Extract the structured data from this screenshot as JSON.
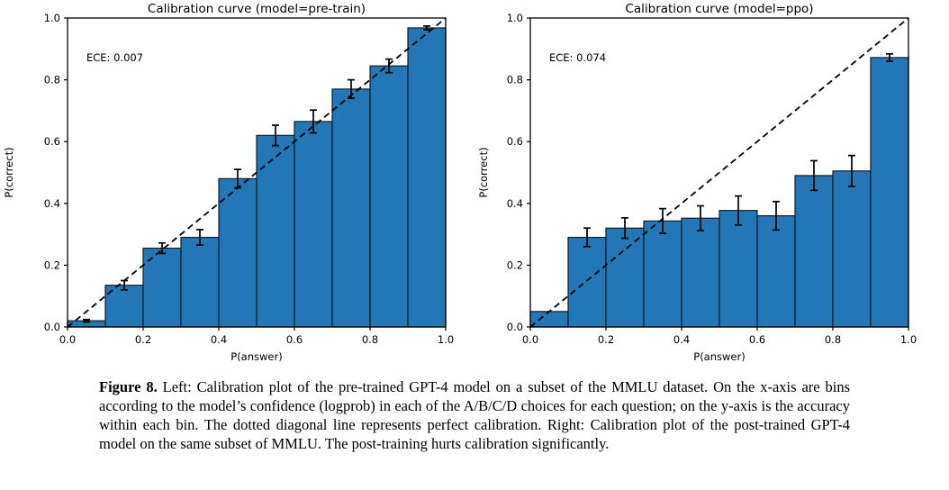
{
  "figure_caption": {
    "label": "Figure 8.",
    "text": " Left: Calibration plot of the pre-trained GPT-4 model on a subset of the MMLU dataset. On the x-axis are bins according to the model’s confidence (logprob) in each of the A/B/C/D choices for each question; on the y-axis is the accuracy within each bin. The dotted diagonal line represents perfect calibration. Right: Calibration plot of the post-trained GPT-4 model on the same subset of MMLU. The post-training hurts calibration significantly."
  },
  "colors": {
    "bar_fill": "#2277b4",
    "bar_edge": "#0d1f30",
    "line": "#000000",
    "text": "#000000",
    "background": "#ffffff"
  },
  "chart_data": [
    {
      "type": "bar",
      "title": "Calibration curve (model=pre-train)",
      "annotation": "ECE: 0.007",
      "xlabel": "P(answer)",
      "ylabel": "P(correct)",
      "xlim": [
        0.0,
        1.0
      ],
      "ylim": [
        0.0,
        1.0
      ],
      "xticks": [
        0.0,
        0.2,
        0.4,
        0.6,
        0.8,
        1.0
      ],
      "yticks": [
        0.0,
        0.2,
        0.4,
        0.6,
        0.8,
        1.0
      ],
      "grid": false,
      "legend": null,
      "bin_edges": [
        0.0,
        0.1,
        0.2,
        0.3,
        0.4,
        0.5,
        0.6,
        0.7,
        0.8,
        0.9,
        1.0
      ],
      "values": [
        0.02,
        0.135,
        0.255,
        0.29,
        0.48,
        0.62,
        0.665,
        0.77,
        0.845,
        0.968
      ],
      "errors": [
        0.004,
        0.015,
        0.017,
        0.025,
        0.03,
        0.033,
        0.037,
        0.03,
        0.022,
        0.006
      ],
      "diagonal_line": {
        "from": [
          0,
          0
        ],
        "to": [
          1,
          1
        ],
        "style": "dashed",
        "meaning": "perfect calibration"
      }
    },
    {
      "type": "bar",
      "title": "Calibration curve (model=ppo)",
      "annotation": "ECE: 0.074",
      "xlabel": "P(answer)",
      "ylabel": "P(correct)",
      "xlim": [
        0.0,
        1.0
      ],
      "ylim": [
        0.0,
        1.0
      ],
      "xticks": [
        0.0,
        0.2,
        0.4,
        0.6,
        0.8,
        1.0
      ],
      "yticks": [
        0.0,
        0.2,
        0.4,
        0.6,
        0.8,
        1.0
      ],
      "grid": false,
      "legend": null,
      "bin_edges": [
        0.0,
        0.1,
        0.2,
        0.3,
        0.4,
        0.5,
        0.6,
        0.7,
        0.8,
        0.9,
        1.0
      ],
      "values": [
        0.05,
        0.29,
        0.32,
        0.343,
        0.352,
        0.377,
        0.36,
        0.49,
        0.505,
        0.872
      ],
      "errors": [
        0,
        0.03,
        0.033,
        0.04,
        0.04,
        0.047,
        0.046,
        0.048,
        0.05,
        0.012
      ],
      "diagonal_line": {
        "from": [
          0,
          0
        ],
        "to": [
          1,
          1
        ],
        "style": "dashed",
        "meaning": "perfect calibration"
      }
    }
  ]
}
